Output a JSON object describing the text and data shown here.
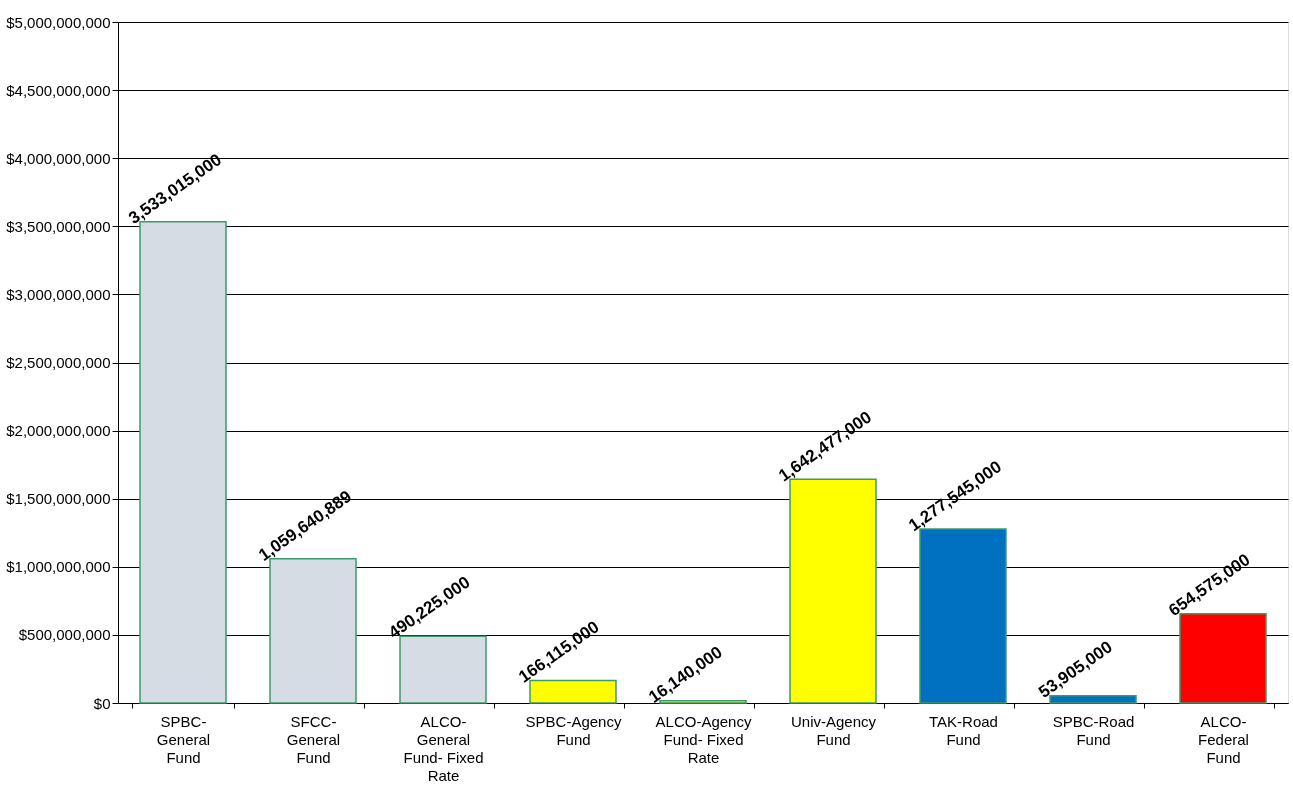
{
  "chart_data": {
    "type": "bar",
    "categories": [
      "SPBC-General Fund",
      "SFCC-General Fund",
      "ALCO-General Fund- Fixed Rate",
      "SPBC-Agency Fund",
      "ALCO-Agency Fund- Fixed Rate",
      "Univ-Agency Fund",
      "TAK-Road Fund",
      "SPBC-Road Fund",
      "ALCO-Federal Fund"
    ],
    "values": [
      3533015000,
      1059640889,
      490225000,
      166115000,
      16140000,
      1642477000,
      1277545000,
      53905000,
      654575000
    ],
    "colors": [
      "#d6dce4",
      "#d6dce4",
      "#d6dce4",
      "#ffff00",
      "#ffff00",
      "#ffff00",
      "#0070c0",
      "#0070c0",
      "#ff0000"
    ],
    "ylim": [
      0,
      5000000000
    ],
    "yticks": [
      {
        "value": 0,
        "label": "$0"
      },
      {
        "value": 500000000,
        "label": "$500,000,000"
      },
      {
        "value": 1000000000,
        "label": "$1,000,000,000"
      },
      {
        "value": 1500000000,
        "label": "$1,500,000,000"
      },
      {
        "value": 2000000000,
        "label": "$2,000,000,000"
      },
      {
        "value": 2500000000,
        "label": "$2,500,000,000"
      },
      {
        "value": 3000000000,
        "label": "$3,000,000,000"
      },
      {
        "value": 3500000000,
        "label": "$3,500,000,000"
      },
      {
        "value": 4000000000,
        "label": "$4,000,000,000"
      },
      {
        "value": 4500000000,
        "label": "$4,500,000,000"
      },
      {
        "value": 5000000000,
        "label": "$5,000,000,000"
      }
    ],
    "grid": "y",
    "value_labels": [
      "3,533,015,000",
      "1,059,640,889",
      "490,225,000",
      "166,115,000",
      "16,140,000",
      "1,642,477,000",
      "1,277,545,000",
      "53,905,000",
      "654,575,000"
    ]
  }
}
